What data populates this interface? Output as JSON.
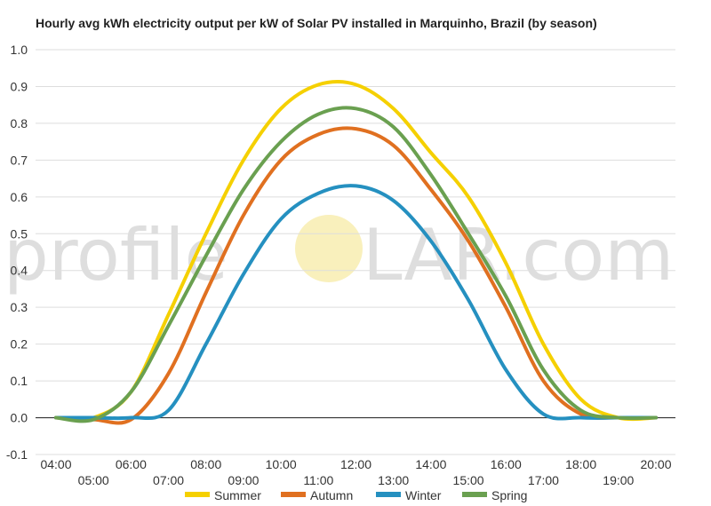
{
  "title": "Hourly avg kWh electricity output per kW of Solar PV installed in Marquinho, Brazil (by season)",
  "watermark": {
    "left_text": "profile",
    "right_text": "LAR.com",
    "sun_color": "#f7e9a0",
    "text_color": "#d4d4d4"
  },
  "chart_data": {
    "type": "line",
    "title": "Hourly avg kWh electricity output per kW of Solar PV installed in Marquinho, Brazil (by season)",
    "x": [
      "04:00",
      "05:00",
      "06:00",
      "07:00",
      "08:00",
      "09:00",
      "10:00",
      "11:00",
      "12:00",
      "13:00",
      "14:00",
      "15:00",
      "16:00",
      "17:00",
      "18:00",
      "19:00",
      "20:00"
    ],
    "x_tick_labels_upper": [
      "04:00",
      "06:00",
      "08:00",
      "10:00",
      "12:00",
      "14:00",
      "16:00",
      "18:00",
      "20:00"
    ],
    "x_tick_labels_lower": [
      "05:00",
      "07:00",
      "09:00",
      "11:00",
      "13:00",
      "15:00",
      "17:00",
      "19:00"
    ],
    "ylim": [
      -0.1,
      1.0
    ],
    "y_ticks": [
      "-0.1",
      "0.0",
      "0.1",
      "0.2",
      "0.3",
      "0.4",
      "0.5",
      "0.6",
      "0.7",
      "0.8",
      "0.9",
      "1.0"
    ],
    "grid": true,
    "legend_position": "bottom",
    "series": [
      {
        "name": "Summer",
        "color": "#f5d000",
        "values": [
          0.0,
          0.0,
          0.07,
          0.28,
          0.5,
          0.7,
          0.84,
          0.905,
          0.905,
          0.84,
          0.72,
          0.6,
          0.42,
          0.2,
          0.05,
          0.0,
          0.0
        ]
      },
      {
        "name": "Autumn",
        "color": "#e07020",
        "values": [
          0.0,
          -0.005,
          -0.005,
          0.12,
          0.34,
          0.55,
          0.7,
          0.77,
          0.785,
          0.74,
          0.62,
          0.48,
          0.3,
          0.1,
          0.01,
          0.0,
          0.0
        ]
      },
      {
        "name": "Winter",
        "color": "#2590c0",
        "values": [
          0.0,
          0.0,
          0.0,
          0.02,
          0.2,
          0.39,
          0.54,
          0.61,
          0.63,
          0.59,
          0.48,
          0.32,
          0.13,
          0.01,
          0.0,
          0.0,
          0.0
        ]
      },
      {
        "name": "Spring",
        "color": "#6aa050",
        "values": [
          0.0,
          -0.005,
          0.07,
          0.25,
          0.44,
          0.62,
          0.75,
          0.825,
          0.84,
          0.79,
          0.66,
          0.5,
          0.33,
          0.13,
          0.02,
          0.0,
          0.0
        ]
      }
    ]
  }
}
